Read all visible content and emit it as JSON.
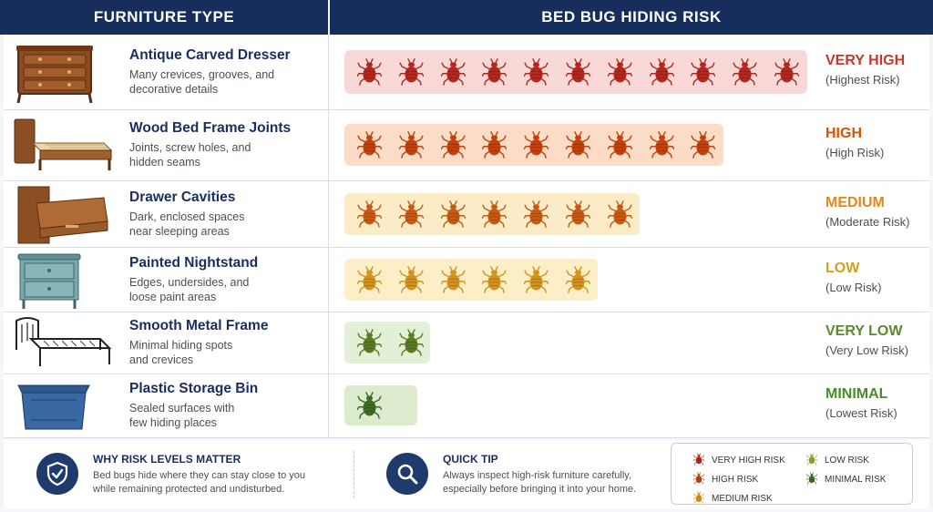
{
  "header": {
    "left": "FURNITURE TYPE",
    "right": "BED BUG HIDING RISK"
  },
  "colors": {
    "very_high": "#c0392b",
    "high": "#d35400",
    "medium": "#e08a1e",
    "low": "#d4a017",
    "very_low": "#5a8a2c",
    "minimal": "#3f6b24"
  },
  "chart_data": {
    "type": "bar",
    "categories": [
      "Antique Carved Dresser",
      "Wood Bed Frame Joints",
      "Drawer Cavities",
      "Painted Nightstand",
      "Smooth Metal Frame",
      "Plastic Storage Bin"
    ],
    "values": [
      11,
      9,
      7,
      6,
      2,
      1
    ],
    "title": "BED BUG HIDING RISK",
    "xlabel": "FURNITURE TYPE",
    "ylabel": "",
    "ylim": [
      0,
      11
    ]
  },
  "rows": [
    {
      "name": "Antique Carved Dresser",
      "desc1": "Many crevices, grooves, and",
      "desc2": "decorative details",
      "level": "VERY HIGH",
      "sub": "(Highest Risk)",
      "bugs": 11,
      "bar_color": "#f9d9d8",
      "bug_color": "#b2281f",
      "level_color": "#c0392b",
      "icon": "dresser-icon"
    },
    {
      "name": "Wood Bed Frame Joints",
      "desc1": "Joints, screw holes, and",
      "desc2": "hidden seams",
      "level": "HIGH",
      "sub": "(High Risk)",
      "bugs": 9,
      "bar_color": "#fbdcc7",
      "bug_color": "#c2410c",
      "level_color": "#d35400",
      "icon": "bed-frame-icon"
    },
    {
      "name": "Drawer Cavities",
      "desc1": "Dark, enclosed spaces",
      "desc2": "near sleeping areas",
      "level": "MEDIUM",
      "sub": "(Moderate Risk)",
      "bugs": 7,
      "bar_color": "#fcebc7",
      "bug_color": "#c65a14",
      "level_color": "#e08a1e",
      "icon": "drawer-icon"
    },
    {
      "name": "Painted Nightstand",
      "desc1": "Edges, undersides, and",
      "desc2": "loose paint areas",
      "level": "LOW",
      "sub": "(Low Risk)",
      "bugs": 6,
      "bar_color": "#fcefc8",
      "bug_color": "#d4921e",
      "level_color": "#d4a017",
      "icon": "nightstand-icon"
    },
    {
      "name": "Smooth Metal Frame",
      "desc1": "Minimal hiding spots",
      "desc2": "and crevices",
      "level": "VERY LOW",
      "sub": "(Very Low Risk)",
      "bugs": 2,
      "bar_color": "#e3efd6",
      "bug_color": "#5b7d22",
      "level_color": "#5a8a2c",
      "icon": "metal-frame-icon"
    },
    {
      "name": "Plastic Storage Bin",
      "desc1": "Sealed surfaces with",
      "desc2": "few hiding places",
      "level": "MINIMAL",
      "sub": "(Lowest Risk)",
      "bugs": 1,
      "bar_color": "#dcebcd",
      "bug_color": "#3f6b24",
      "level_color": "#4b8a2e",
      "icon": "storage-bin-icon"
    }
  ],
  "footer": {
    "why_title": "WHY RISK LEVELS MATTER",
    "why_text1": "Bed bugs hide where they can stay close to you",
    "why_text2": "while remaining protected and undisturbed.",
    "tip_title": "QUICK TIP",
    "tip_text1": "Always inspect high-risk furniture carefully,",
    "tip_text2": "especially before bringing it into your home."
  },
  "legend": [
    {
      "label": "VERY HIGH RISK",
      "color": "#b2281f"
    },
    {
      "label": "HIGH RISK",
      "color": "#c2410c"
    },
    {
      "label": "MEDIUM RISK",
      "color": "#d4921e"
    },
    {
      "label": "LOW RISK",
      "color": "#8aa63a"
    },
    {
      "label": "MINIMAL RISK",
      "color": "#3f6b24"
    }
  ]
}
